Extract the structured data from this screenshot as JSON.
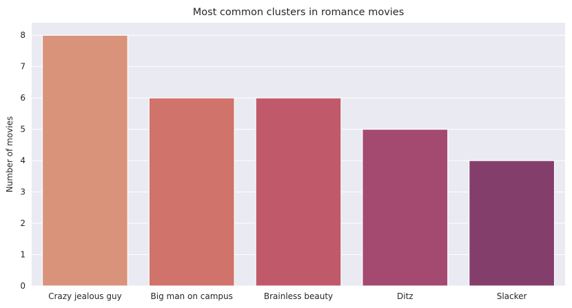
{
  "chart_data": {
    "type": "bar",
    "title": "Most common clusters in romance movies",
    "xlabel": "",
    "ylabel": "Number of movies",
    "categories": [
      "Crazy jealous guy",
      "Big man on campus",
      "Brainless beauty",
      "Ditz",
      "Slacker"
    ],
    "values": [
      8,
      6,
      6,
      5,
      4
    ],
    "ylim": [
      0,
      8.4
    ],
    "yticks": [
      "0",
      "1",
      "2",
      "3",
      "4",
      "5",
      "6",
      "7",
      "8"
    ],
    "grid": true,
    "background_color": "#EAEAF2",
    "bar_colors": [
      "#D9937A",
      "#D0736A",
      "#C05A6A",
      "#A4496F",
      "#843E6C"
    ]
  }
}
